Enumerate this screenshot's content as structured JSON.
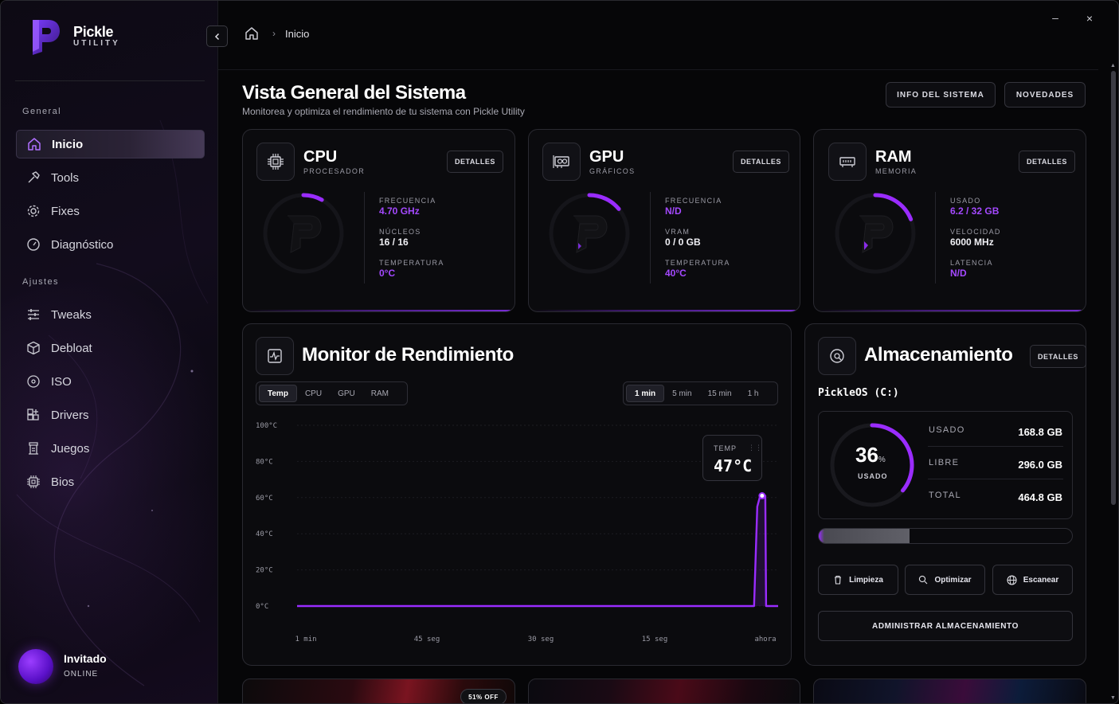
{
  "app": {
    "brand": "Pickle",
    "brand_sub": "UTILITY"
  },
  "window": {
    "minimize": "–",
    "close": "×"
  },
  "breadcrumb": {
    "current": "Inicio"
  },
  "sidebar": {
    "section_general": "General",
    "section_ajustes": "Ajustes",
    "items": [
      {
        "label": "Inicio",
        "icon": "home-icon",
        "active": true
      },
      {
        "label": "Tools",
        "icon": "hammer-icon"
      },
      {
        "label": "Fixes",
        "icon": "gear-icon"
      },
      {
        "label": "Diagnóstico",
        "icon": "gauge-icon"
      },
      {
        "label": "Tweaks",
        "icon": "sliders-icon"
      },
      {
        "label": "Debloat",
        "icon": "package-icon"
      },
      {
        "label": "ISO",
        "icon": "disc-icon"
      },
      {
        "label": "Drivers",
        "icon": "grid-plus-icon"
      },
      {
        "label": "Juegos",
        "icon": "tower-icon"
      },
      {
        "label": "Bios",
        "icon": "chip-icon"
      }
    ],
    "user": {
      "name": "Invitado",
      "status": "ONLINE"
    }
  },
  "header": {
    "title": "Vista General del Sistema",
    "subtitle": "Monitorea y optimiza el rendimiento de tu sistema con Pickle Utility",
    "btn_info": "INFO DEL SISTEMA",
    "btn_news": "NOVEDADES"
  },
  "cards": {
    "details_label": "DETALLES",
    "cpu": {
      "title": "CPU",
      "sub": "PROCESADOR",
      "gauge_fraction": 0.08,
      "stats": [
        {
          "label": "FRECUENCIA",
          "value": "4.70 GHz"
        },
        {
          "label": "NÚCLEOS",
          "value": "16 / 16"
        },
        {
          "label": "TEMPERATURA",
          "value": "0°C"
        }
      ]
    },
    "gpu": {
      "title": "GPU",
      "sub": "GRÁFICOS",
      "gauge_fraction": 0.14,
      "stats": [
        {
          "label": "FRECUENCIA",
          "value": "N/D"
        },
        {
          "label": "VRAM",
          "value": "0 / 0 GB"
        },
        {
          "label": "TEMPERATURA",
          "value": "40°C"
        }
      ]
    },
    "ram": {
      "title": "RAM",
      "sub": "MEMORIA",
      "gauge_fraction": 0.19,
      "stats": [
        {
          "label": "USADO",
          "value": "6.2 / 32 GB"
        },
        {
          "label": "VELOCIDAD",
          "value": "6000 MHz"
        },
        {
          "label": "LATENCIA",
          "value": "N/D"
        }
      ]
    }
  },
  "monitor": {
    "title": "Monitor de Rendimiento",
    "metric_tabs": [
      "Temp",
      "CPU",
      "GPU",
      "RAM"
    ],
    "active_metric": "Temp",
    "range_tabs": [
      "1 min",
      "5 min",
      "15 min",
      "1 h"
    ],
    "active_range": "1 min",
    "tooltip_label": "TEMP",
    "tooltip_value": "47°C",
    "chart_data": {
      "type": "line",
      "ylabels": [
        "100°C",
        "80°C",
        "60°C",
        "40°C",
        "20°C",
        "0°C"
      ],
      "xlabels": [
        "1 min",
        "45 seg",
        "30 seg",
        "15 seg",
        "ahora"
      ],
      "ylim": [
        0,
        100
      ],
      "xlim": [
        60,
        0
      ],
      "x": [
        60,
        3.0,
        2.6,
        2.3,
        2.0,
        1.6,
        1.5,
        0
      ],
      "y": [
        0,
        0,
        55,
        60,
        61,
        61,
        0,
        0
      ],
      "color": "#9a2cff"
    }
  },
  "storage": {
    "title": "Almacenamiento",
    "drive": "PickleOS (C:)",
    "percent": 36,
    "percent_text": "36",
    "percent_sign": "%",
    "used_caption": "USADO",
    "rows": [
      {
        "label": "USADO",
        "value": "168.8 GB"
      },
      {
        "label": "LIBRE",
        "value": "296.0 GB"
      },
      {
        "label": "TOTAL",
        "value": "464.8 GB"
      }
    ],
    "actions": [
      "Limpieza",
      "Optimizar",
      "Escanear"
    ],
    "admin": "ADMINISTRAR ALMACENAMIENTO"
  },
  "promo": {
    "badge": "51% OFF"
  }
}
